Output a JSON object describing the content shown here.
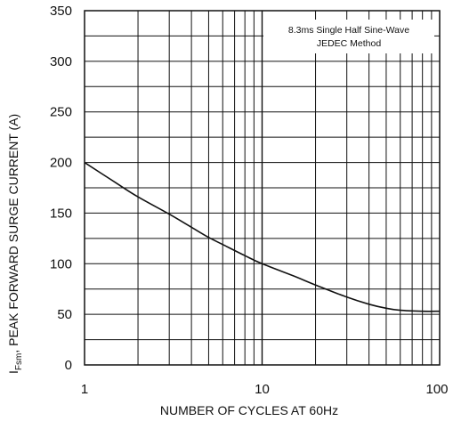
{
  "chart_data": {
    "type": "line",
    "title": "",
    "xscale": "log",
    "xlim": [
      1,
      100
    ],
    "ylim": [
      0,
      350
    ],
    "grid": true,
    "x_ticks": [
      "1",
      "10",
      "100"
    ],
    "y_ticks": [
      "0",
      "50",
      "100",
      "150",
      "200",
      "250",
      "300",
      "350"
    ],
    "xlabel": "NUMBER OF CYCLES AT 60Hz",
    "ylabel": {
      "symbol": "I",
      "subscript": "Fsm",
      "text": ", PEAK FORWARD SURGE CURRENT (A)"
    },
    "annotation": {
      "line1": "8.3ms Single Half Sine-Wave",
      "line2": "JEDEC Method"
    },
    "series": [
      {
        "x": [
          1,
          1.5,
          2,
          3,
          4,
          5,
          6,
          8,
          10,
          15,
          20,
          30,
          40,
          50,
          60,
          80,
          100
        ],
        "y": [
          200,
          180,
          166,
          149,
          136,
          126,
          119,
          108,
          100,
          88,
          79,
          67,
          60,
          56,
          54,
          53,
          53
        ]
      }
    ],
    "line_color": "#111111",
    "grid_color": "#111111"
  }
}
